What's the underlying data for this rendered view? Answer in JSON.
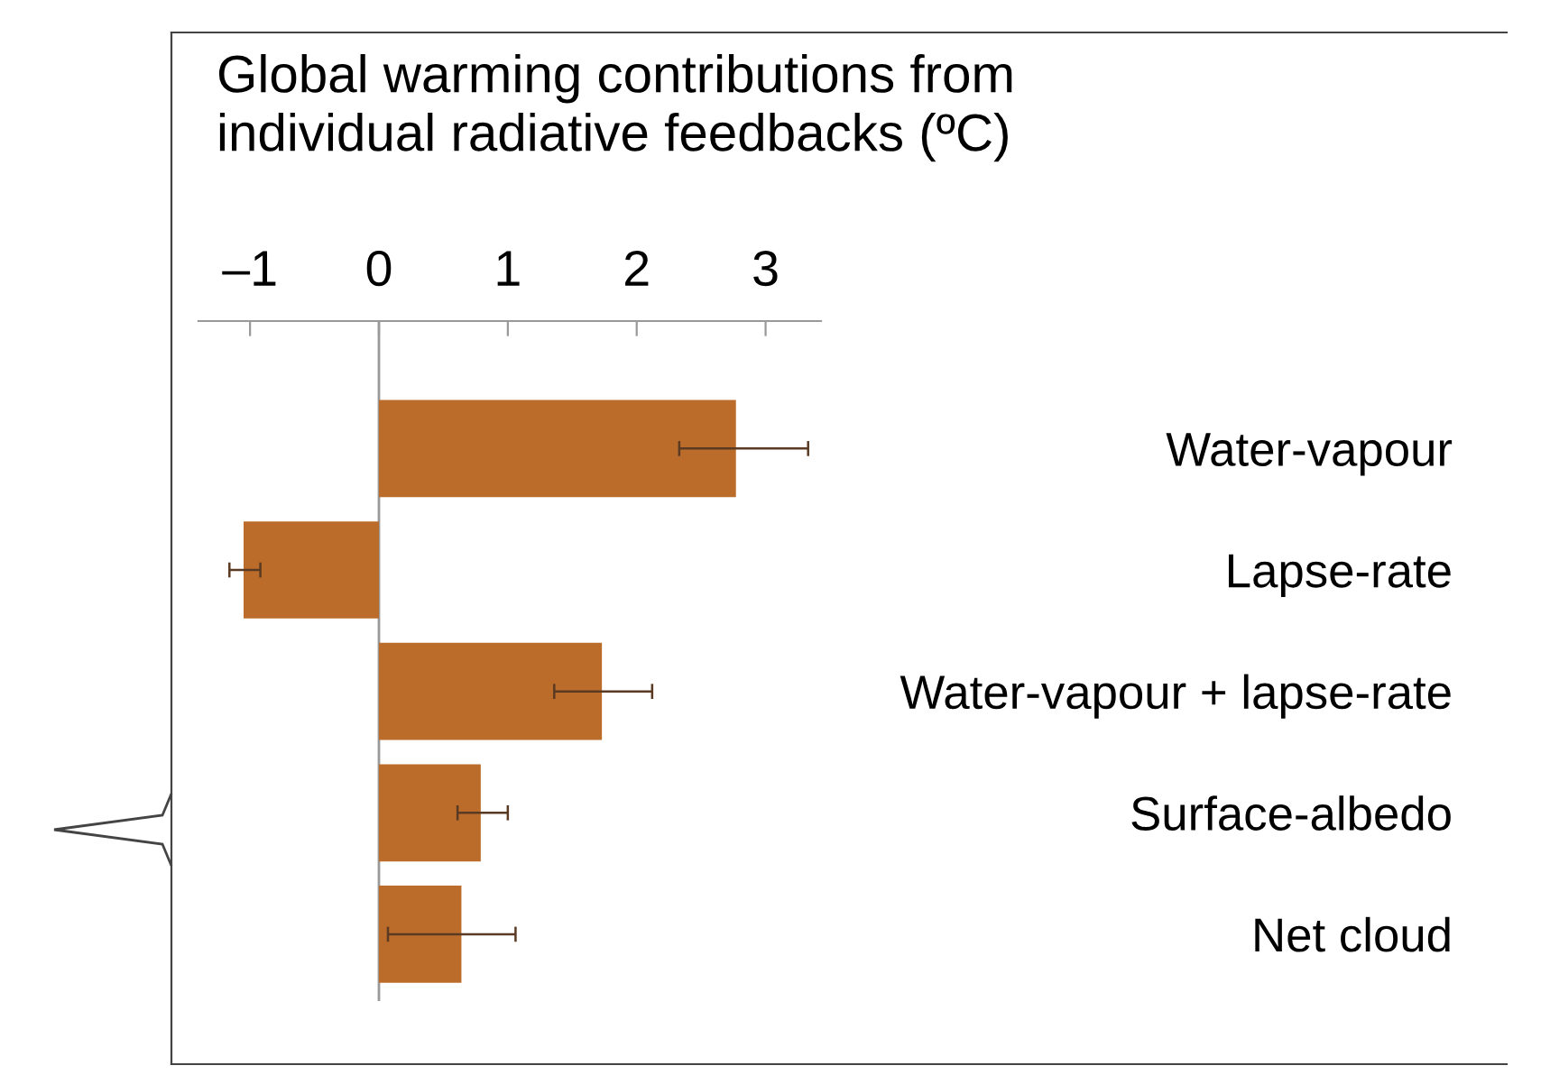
{
  "chart_data": {
    "type": "bar",
    "orientation": "horizontal",
    "title": "Global warming contributions from\nindividual radiative feedbacks (ºC)",
    "categories": [
      "Water-vapour",
      "Lapse-rate",
      "Water-vapour + lapse-rate",
      "Surface-albedo",
      "Net cloud"
    ],
    "values": [
      2.77,
      -1.05,
      1.73,
      0.79,
      0.64
    ],
    "errors": [
      [
        2.33,
        3.33
      ],
      [
        -1.16,
        -0.92
      ],
      [
        1.36,
        2.12
      ],
      [
        0.61,
        1.0
      ],
      [
        0.07,
        1.06
      ]
    ],
    "color": "#bb6c2a",
    "xlim": [
      -1.4,
      3.43
    ],
    "xticks": [
      {
        "value": -1,
        "label": "–1"
      },
      0,
      1,
      2,
      3
    ]
  }
}
